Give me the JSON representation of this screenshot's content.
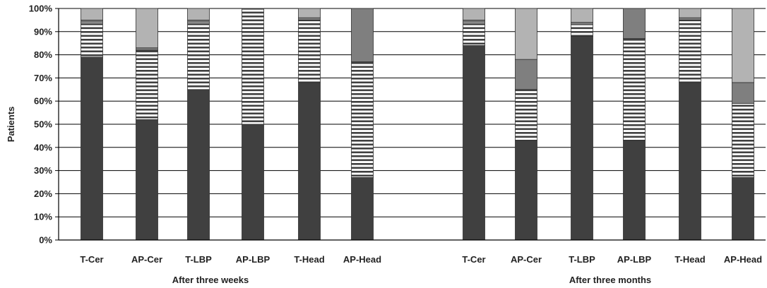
{
  "chart_data": {
    "type": "bar",
    "stacked": true,
    "ylabel": "Patients",
    "ylim": [
      0,
      100
    ],
    "yticks": [
      "0%",
      "10%",
      "20%",
      "30%",
      "40%",
      "50%",
      "60%",
      "70%",
      "80%",
      "90%",
      "100%"
    ],
    "grid": true,
    "groups": [
      {
        "label": "After three weeks",
        "categories": [
          "T-Cer",
          "AP-Cer",
          "T-LBP",
          "AP-LBP",
          "T-Head",
          "AP-Head"
        ],
        "segments": [
          [
            79,
            15,
            1,
            5
          ],
          [
            52,
            30,
            1,
            17
          ],
          [
            65,
            29,
            1,
            5
          ],
          [
            50,
            50,
            0,
            0
          ],
          [
            68,
            27,
            1,
            4
          ],
          [
            27,
            50,
            23,
            0
          ]
        ]
      },
      {
        "label": "After three months",
        "categories": [
          "T-Cer",
          "AP-Cer",
          "T-LBP",
          "AP-LBP",
          "T-Head",
          "AP-Head"
        ],
        "segments": [
          [
            84,
            10,
            1,
            5
          ],
          [
            43,
            22,
            13,
            22
          ],
          [
            88,
            5,
            1,
            6
          ],
          [
            43,
            44,
            13,
            0
          ],
          [
            68,
            27,
            1,
            4
          ],
          [
            27,
            32,
            9,
            32
          ]
        ]
      }
    ],
    "colors": {
      "segment0": "#404040",
      "segment1_stripe": "#ffffff",
      "segment1_line": "#404040",
      "segment2": "#7f7f7f",
      "segment3": "#b3b3b3",
      "axis": "#000000",
      "grid": "#000000"
    }
  }
}
